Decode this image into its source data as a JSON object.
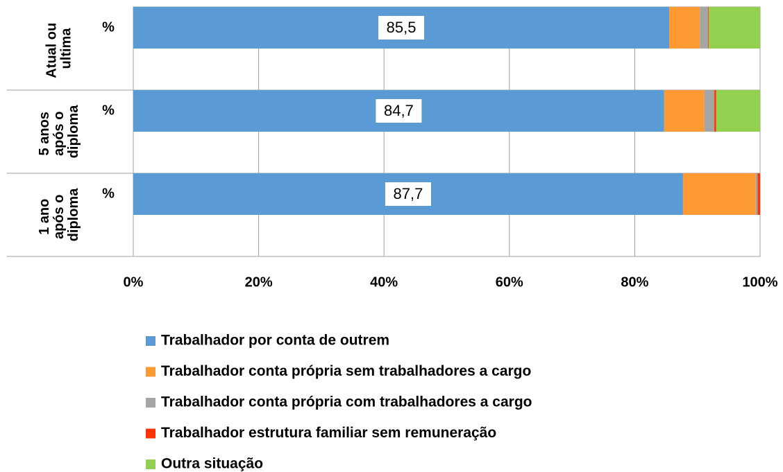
{
  "chart_data": {
    "type": "stacked_barh",
    "groups": [
      "Atual ou ultima",
      "5 anos após o diploma",
      "1 ano após o diploma"
    ],
    "categories": [
      "%",
      "%",
      "%"
    ],
    "series": [
      {
        "name": "Trabalhador por conta de outrem",
        "color": "#5b9bd5",
        "values": [
          85.5,
          84.7,
          87.7
        ],
        "value_labels": [
          "85,5",
          "84,7",
          "87,7"
        ]
      },
      {
        "name": "Trabalhador conta própria sem trabalhadores a cargo",
        "color": "#ff9933",
        "values": [
          4.9,
          6.4,
          11.6
        ]
      },
      {
        "name": "Trabalhador conta própria com trabalhadores a cargo",
        "color": "#a5a5a5",
        "values": [
          1.3,
          1.6,
          0.3
        ]
      },
      {
        "name": "Trabalhador estrutura familiar sem remuneração",
        "color": "#ff3300",
        "values": [
          0.1,
          0.3,
          0.4
        ]
      },
      {
        "name": "Outra situação",
        "color": "#92d050",
        "values": [
          8.2,
          7.0,
          0
        ]
      }
    ],
    "xlim": [
      0,
      100
    ],
    "xticks": [
      {
        "value": 0,
        "label": "0%"
      },
      {
        "value": 20,
        "label": "20%"
      },
      {
        "value": 40,
        "label": "40%"
      },
      {
        "value": 60,
        "label": "60%"
      },
      {
        "value": 80,
        "label": "80%"
      },
      {
        "value": 100,
        "label": "100%"
      }
    ],
    "grid": true,
    "legend": "bottom"
  }
}
